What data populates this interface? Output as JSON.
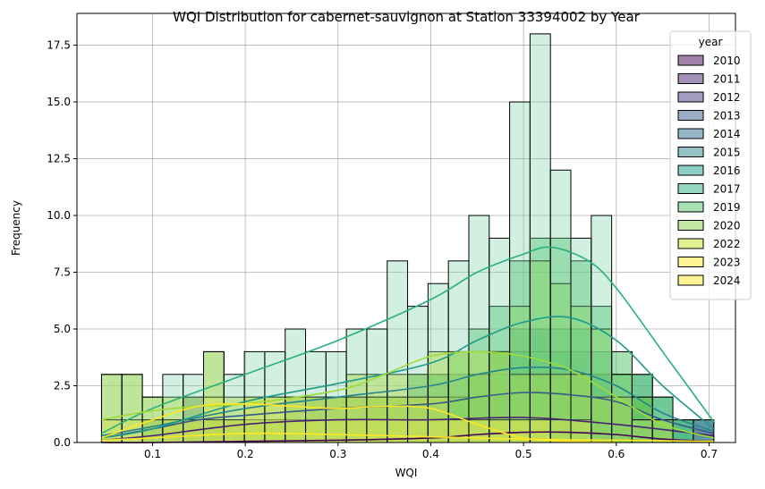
{
  "chart_data": {
    "type": "histogram",
    "title": "WQI Distribution for cabernet-sauvignon at Station 33394002 by Year",
    "xlabel": "WQI",
    "ylabel": "Frequency",
    "xlim": [
      0.0185,
      0.7285
    ],
    "ylim": [
      0,
      18.9
    ],
    "xticks": [
      0.1,
      0.2,
      0.3,
      0.4,
      0.5,
      0.6,
      0.7
    ],
    "xtick_labels": [
      "0.1",
      "0.2",
      "0.3",
      "0.4",
      "0.5",
      "0.6",
      "0.7"
    ],
    "yticks": [
      0.0,
      2.5,
      5.0,
      7.5,
      10.0,
      12.5,
      15.0,
      17.5
    ],
    "ytick_labels": [
      "0.0",
      "2.5",
      "5.0",
      "7.5",
      "10.0",
      "12.5",
      "15.0",
      "17.5"
    ],
    "grid": true,
    "kde": true,
    "bin_edges": [
      0.045,
      0.067,
      0.089,
      0.111,
      0.133,
      0.155,
      0.177,
      0.199,
      0.221,
      0.243,
      0.265,
      0.287,
      0.309,
      0.331,
      0.353,
      0.375,
      0.397,
      0.419,
      0.441,
      0.463,
      0.485,
      0.507,
      0.529,
      0.551,
      0.573,
      0.595,
      0.617,
      0.639,
      0.661,
      0.683,
      0.705
    ],
    "legend": {
      "title": "year",
      "placement": "upper right",
      "entries": [
        "2010",
        "2011",
        "2012",
        "2013",
        "2014",
        "2015",
        "2016",
        "2017",
        "2019",
        "2020",
        "2022",
        "2023",
        "2024"
      ]
    },
    "series": [
      {
        "name": "2010",
        "color": "#440154",
        "values": [
          0,
          0,
          0,
          0,
          0,
          0,
          0,
          0,
          0,
          0,
          0,
          0,
          0,
          0,
          0,
          0,
          0,
          0,
          1,
          1,
          1,
          1,
          1,
          1,
          1,
          0,
          0,
          0,
          0,
          0
        ]
      },
      {
        "name": "2011",
        "color": "#482173",
        "values": [
          0,
          0,
          0,
          0,
          0,
          0,
          0,
          1,
          1,
          1,
          1,
          1,
          1,
          1,
          1,
          1,
          1,
          1,
          1,
          1,
          1,
          1,
          1,
          1,
          1,
          1,
          1,
          1,
          0,
          0
        ]
      },
      {
        "name": "2012",
        "color": "#433e85",
        "values": [
          0,
          0,
          0,
          0,
          0,
          1,
          1,
          1,
          1,
          1,
          1,
          1,
          1,
          1,
          1,
          2,
          2,
          2,
          2,
          2,
          3,
          3,
          3,
          3,
          3,
          2,
          2,
          1,
          1,
          1
        ]
      },
      {
        "name": "2013",
        "color": "#38598c",
        "values": [
          0,
          0,
          0,
          1,
          2,
          1,
          1,
          1,
          1,
          1,
          1,
          1,
          1,
          1,
          1,
          1,
          1,
          1,
          2,
          2,
          2,
          2,
          2,
          2,
          2,
          1,
          1,
          1,
          1,
          1
        ]
      },
      {
        "name": "2014",
        "color": "#2d708e",
        "values": [
          0,
          0,
          0,
          0,
          1,
          1,
          1,
          1,
          1,
          1,
          1,
          1,
          1,
          2,
          2,
          2,
          2,
          2,
          2,
          2,
          3,
          3,
          3,
          3,
          3,
          2,
          2,
          1,
          1,
          1
        ]
      },
      {
        "name": "2015",
        "color": "#25858e",
        "values": [
          0,
          0,
          0,
          1,
          1,
          1,
          1,
          1,
          1,
          1,
          1,
          1,
          1,
          1,
          1,
          2,
          2,
          2,
          3,
          4,
          5,
          5,
          4,
          4,
          3,
          2,
          2,
          1,
          1,
          0
        ]
      },
      {
        "name": "2016",
        "color": "#1e9b8a",
        "values": [
          0,
          0,
          1,
          1,
          1,
          1,
          1,
          1,
          1,
          1,
          2,
          2,
          2,
          2,
          2,
          3,
          3,
          3,
          3,
          4,
          4,
          5,
          5,
          5,
          4,
          3,
          3,
          2,
          1,
          0
        ]
      },
      {
        "name": "2017",
        "color": "#2ab07f",
        "values": [
          0,
          0,
          1,
          1,
          1,
          1,
          1,
          1,
          1,
          2,
          2,
          2,
          2,
          2,
          2,
          2,
          2,
          2,
          3,
          3,
          4,
          4,
          4,
          3,
          3,
          2,
          2,
          1,
          1,
          0
        ]
      },
      {
        "name": "2019",
        "color": "#52c569",
        "values": [
          0,
          0,
          0,
          0,
          0,
          0,
          0,
          1,
          1,
          1,
          1,
          1,
          1,
          2,
          2,
          2,
          3,
          4,
          5,
          6,
          8,
          9,
          9,
          8,
          6,
          4,
          3,
          2,
          1,
          0
        ]
      },
      {
        "name": "2020",
        "color": "#86d549",
        "values": [
          0,
          0,
          0,
          0,
          0,
          0,
          1,
          1,
          1,
          1,
          1,
          1,
          1,
          1,
          1,
          1,
          1,
          2,
          3,
          4,
          6,
          8,
          7,
          6,
          5,
          3,
          2,
          1,
          0,
          0
        ]
      },
      {
        "name": "2022",
        "color": "#c2df23",
        "values": [
          3,
          3,
          2,
          2,
          2,
          4,
          2,
          2,
          2,
          2,
          2,
          2,
          3,
          3,
          3,
          3,
          4,
          4,
          4,
          4,
          3,
          3,
          3,
          3,
          2,
          2,
          1,
          1,
          0,
          0
        ]
      },
      {
        "name": "2023",
        "color": "#fde725",
        "values": [
          1,
          1,
          1,
          1,
          1,
          2,
          1,
          1,
          1,
          1,
          1,
          1,
          1,
          1,
          1,
          1,
          1,
          1,
          1,
          1,
          1,
          1,
          1,
          1,
          0,
          0,
          0,
          0,
          0,
          0
        ]
      },
      {
        "name": "2024",
        "color": "#fde725",
        "values": [
          0,
          0,
          0,
          1,
          1,
          1,
          1,
          2,
          2,
          2,
          2,
          2,
          2,
          2,
          2,
          2,
          2,
          1,
          1,
          1,
          1,
          1,
          0,
          0,
          0,
          0,
          0,
          0,
          0,
          0
        ]
      }
    ],
    "outline_totals": [
      3,
      3,
      2,
      3,
      3,
      4,
      3,
      4,
      4,
      5,
      4,
      4,
      5,
      5,
      8,
      6,
      7,
      8,
      10,
      9,
      15,
      18,
      12,
      9,
      10,
      3,
      1,
      1,
      1,
      1
    ],
    "kde_curves": [
      {
        "name": "2010",
        "color": "#440154",
        "x": [
          0.045,
          0.1,
          0.2,
          0.3,
          0.4,
          0.45,
          0.5,
          0.55,
          0.6,
          0.65,
          0.705
        ],
        "y": [
          0.0,
          0.0,
          0.05,
          0.1,
          0.2,
          0.35,
          0.45,
          0.45,
          0.35,
          0.15,
          0.05
        ]
      },
      {
        "name": "2011",
        "color": "#482173",
        "x": [
          0.045,
          0.1,
          0.2,
          0.3,
          0.4,
          0.5,
          0.6,
          0.705
        ],
        "y": [
          0.1,
          0.3,
          0.8,
          1.0,
          1.0,
          1.1,
          0.8,
          0.3
        ]
      },
      {
        "name": "2013",
        "color": "#38598c",
        "x": [
          0.045,
          0.1,
          0.15,
          0.2,
          0.3,
          0.4,
          0.45,
          0.5,
          0.55,
          0.6,
          0.65,
          0.705
        ],
        "y": [
          0.2,
          0.6,
          1.0,
          1.2,
          1.5,
          1.7,
          2.0,
          2.2,
          2.1,
          1.8,
          1.0,
          0.4
        ]
      },
      {
        "name": "2015",
        "color": "#25858e",
        "x": [
          0.045,
          0.1,
          0.2,
          0.3,
          0.4,
          0.45,
          0.5,
          0.55,
          0.6,
          0.65,
          0.705
        ],
        "y": [
          0.3,
          0.7,
          1.5,
          2.0,
          2.5,
          3.0,
          3.3,
          3.2,
          2.5,
          1.3,
          0.5
        ]
      },
      {
        "name": "2016",
        "color": "#1e9b8a",
        "x": [
          0.045,
          0.1,
          0.2,
          0.3,
          0.4,
          0.45,
          0.5,
          0.55,
          0.6,
          0.65,
          0.705
        ],
        "y": [
          0.2,
          0.6,
          1.8,
          2.6,
          3.5,
          4.5,
          5.3,
          5.5,
          4.5,
          2.5,
          0.6
        ]
      },
      {
        "name": "2019",
        "color": "#2ab07f",
        "x": [
          0.045,
          0.1,
          0.2,
          0.3,
          0.4,
          0.45,
          0.5,
          0.53,
          0.57,
          0.6,
          0.65,
          0.7,
          0.705
        ],
        "y": [
          0.4,
          1.5,
          3.0,
          4.5,
          6.3,
          7.5,
          8.3,
          8.6,
          8.0,
          6.8,
          4.0,
          1.2,
          0.9
        ]
      },
      {
        "name": "2022",
        "color": "#a0da39",
        "x": [
          0.045,
          0.1,
          0.15,
          0.2,
          0.3,
          0.35,
          0.4,
          0.45,
          0.5,
          0.55,
          0.6,
          0.65,
          0.705
        ],
        "y": [
          1.0,
          1.4,
          1.6,
          1.7,
          2.3,
          3.0,
          3.8,
          4.0,
          3.8,
          3.2,
          2.0,
          0.8,
          0.2
        ]
      },
      {
        "name": "2024",
        "color": "#fde725",
        "x": [
          0.045,
          0.1,
          0.15,
          0.2,
          0.25,
          0.3,
          0.35,
          0.4,
          0.45,
          0.5,
          0.55,
          0.6
        ],
        "y": [
          0.2,
          1.0,
          1.6,
          1.7,
          1.6,
          1.5,
          1.6,
          1.5,
          0.8,
          0.2,
          0.05,
          0.0
        ]
      },
      {
        "name": "2023",
        "color": "#fde725",
        "x": [
          0.045,
          0.1,
          0.2,
          0.3,
          0.4,
          0.5,
          0.6,
          0.705
        ],
        "y": [
          0.1,
          0.2,
          0.4,
          0.35,
          0.25,
          0.15,
          0.1,
          0.05
        ]
      }
    ]
  }
}
